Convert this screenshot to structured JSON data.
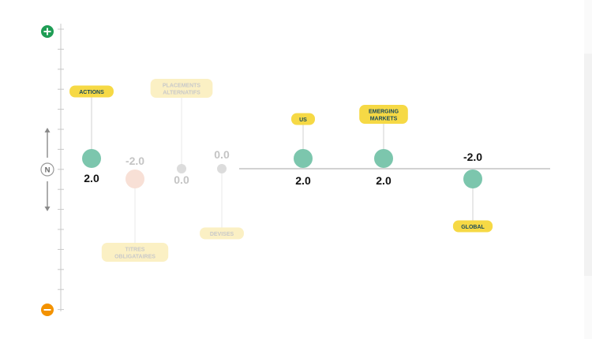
{
  "scale": {
    "plus_icon": "plus-icon",
    "minus_icon": "minus-icon",
    "neutral_label": "N",
    "up_arrow_icon": "arrow-up-icon",
    "down_arrow_icon": "arrow-down-icon"
  },
  "colors": {
    "positive_dot": "#7cc6ad",
    "negative_dot": "#7cc6ad",
    "faded_negative_dot": "#f8e0d6",
    "neutral_dot": "#dcdcdc",
    "label_bg": "#f6d945",
    "label_text": "#1a4a5a",
    "faded_label_bg": "#fbf0c4",
    "plus_bg": "#1f9d55",
    "minus_bg": "#f39200",
    "axis": "#b8b8b8"
  },
  "chart_data": {
    "type": "scatter",
    "ylim": [
      -7,
      7
    ],
    "points": [
      {
        "label_lines": [
          "ACTIONS"
        ],
        "value": 2.0,
        "display": "2.0",
        "faded": false
      },
      {
        "label_lines": [
          "TITRES",
          "OBLIGATAIRES"
        ],
        "value": -2.0,
        "display": "-2.0",
        "faded": true
      },
      {
        "label_lines": [
          "PLACEMENTS",
          "ALTERNATIFS"
        ],
        "value": 0.0,
        "display": "0.0",
        "faded": true
      },
      {
        "label_lines": [
          "DEVISES"
        ],
        "value": 0.0,
        "display": "0.0",
        "faded": true
      },
      {
        "label_lines": [
          "US"
        ],
        "value": 2.0,
        "display": "2.0",
        "faded": false
      },
      {
        "label_lines": [
          "EMERGING",
          "MARKETS"
        ],
        "value": 2.0,
        "display": "2.0",
        "faded": false
      },
      {
        "label_lines": [
          "GLOBAL"
        ],
        "value": -2.0,
        "display": "-2.0",
        "faded": false
      }
    ]
  }
}
